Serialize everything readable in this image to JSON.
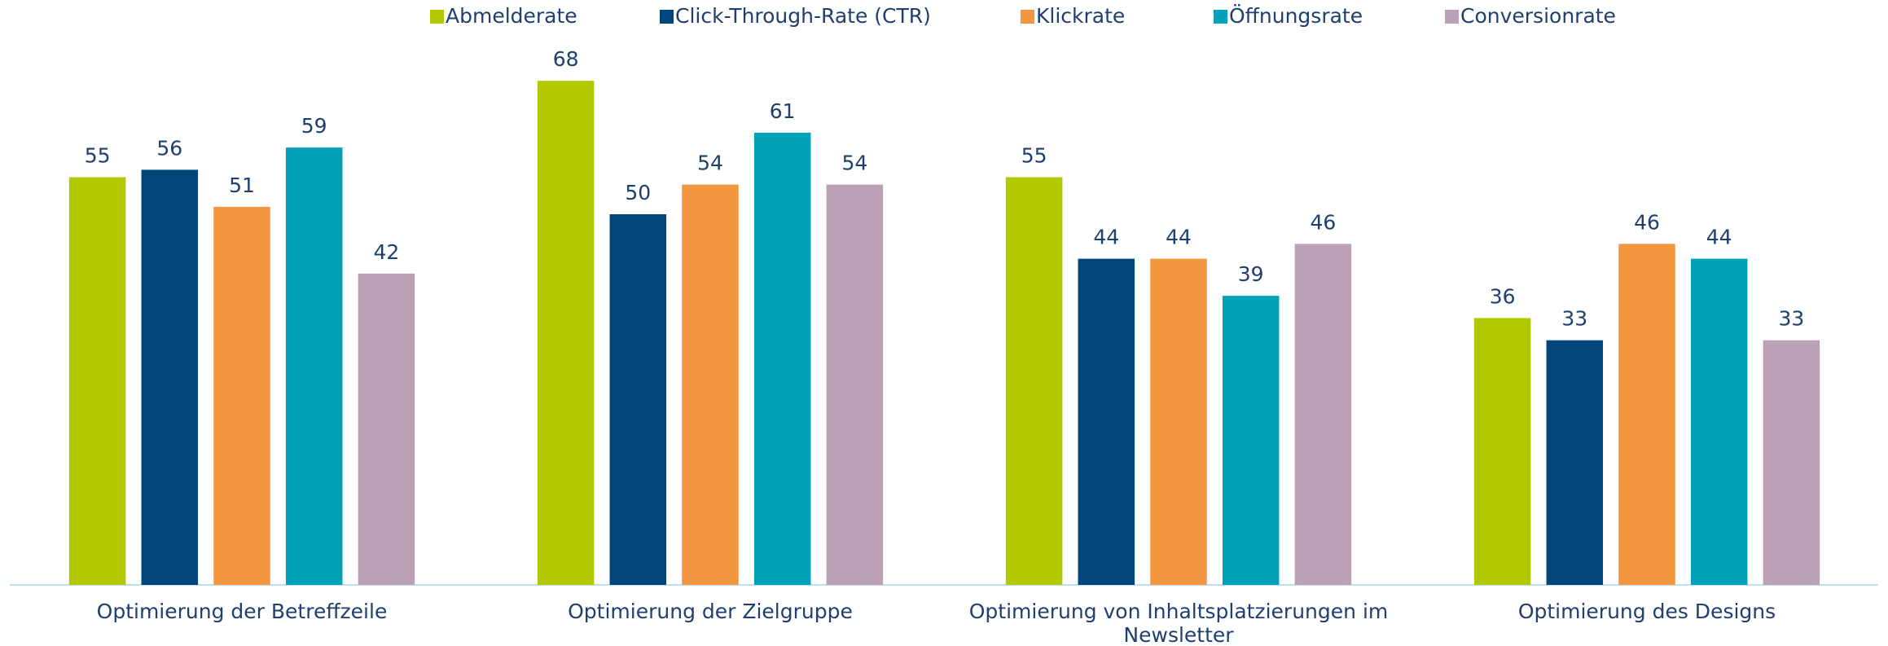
{
  "chart_data": {
    "type": "bar",
    "categories": [
      "Optimierung der Betreffzeile",
      "Optimierung der Zielgruppe",
      "Optimierung von Inhaltsplatzierungen im Newsletter",
      "Optimierung des Designs"
    ],
    "series": [
      {
        "name": "Abmelderate",
        "color": "#b2c800",
        "values": [
          55,
          68,
          55,
          36
        ]
      },
      {
        "name": "Click-Through-Rate (CTR)",
        "color": "#00457c",
        "values": [
          56,
          50,
          44,
          33
        ]
      },
      {
        "name": "Klickrate",
        "color": "#f39640",
        "values": [
          51,
          54,
          44,
          46
        ]
      },
      {
        "name": "Öffnungsrate",
        "color": "#00a2ba",
        "values": [
          59,
          61,
          39,
          44
        ]
      },
      {
        "name": "Conversionrate",
        "color": "#bba0b6",
        "values": [
          42,
          54,
          46,
          33
        ]
      }
    ],
    "ylim": [
      0,
      70
    ],
    "legend": "top"
  }
}
